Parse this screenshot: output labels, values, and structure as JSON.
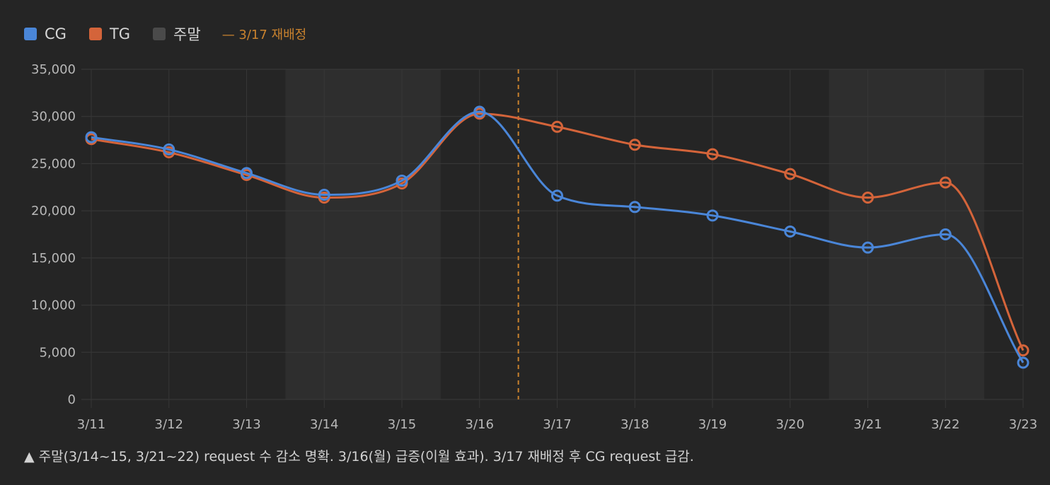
{
  "legend": {
    "items": [
      {
        "label": "CG",
        "color": "#4a86d8"
      },
      {
        "label": "TG",
        "color": "#d4643a"
      },
      {
        "label": "주말",
        "color": "#4a4a4a"
      }
    ],
    "marker_label": "— 3/17 재배정",
    "marker_color": "#c9822e"
  },
  "footnote": "▲ 주말(3/14~15, 3/21~22) request 수 감소 명확. 3/16(월) 급증(이월 효과). 3/17 재배정 후 CG request 급감.",
  "chart_data": {
    "type": "line",
    "title": "",
    "xlabel": "",
    "ylabel": "",
    "categories": [
      "3/11",
      "3/12",
      "3/13",
      "3/14",
      "3/15",
      "3/16",
      "3/17",
      "3/18",
      "3/19",
      "3/20",
      "3/21",
      "3/22",
      "3/23"
    ],
    "series": [
      {
        "name": "CG",
        "color": "#4a86d8",
        "values": [
          27800,
          26500,
          24000,
          21700,
          23200,
          30500,
          21600,
          20400,
          19500,
          17800,
          16100,
          17500,
          3900
        ]
      },
      {
        "name": "TG",
        "color": "#d4643a",
        "values": [
          27600,
          26200,
          23800,
          21400,
          22900,
          30300,
          28900,
          27000,
          26000,
          23900,
          21400,
          23000,
          5200
        ]
      }
    ],
    "ylim": [
      0,
      35000
    ],
    "yticks": [
      0,
      5000,
      10000,
      15000,
      20000,
      25000,
      30000,
      35000
    ],
    "ytick_labels": [
      "0",
      "5,000",
      "10,000",
      "15,000",
      "20,000",
      "25,000",
      "30,000",
      "35,000"
    ],
    "weekend_ranges": [
      [
        "3/14",
        "3/15"
      ],
      [
        "3/21",
        "3/22"
      ]
    ],
    "reassign_marker": {
      "between": [
        "3/16",
        "3/17"
      ]
    },
    "grid": true,
    "legend_position": "top-left"
  }
}
